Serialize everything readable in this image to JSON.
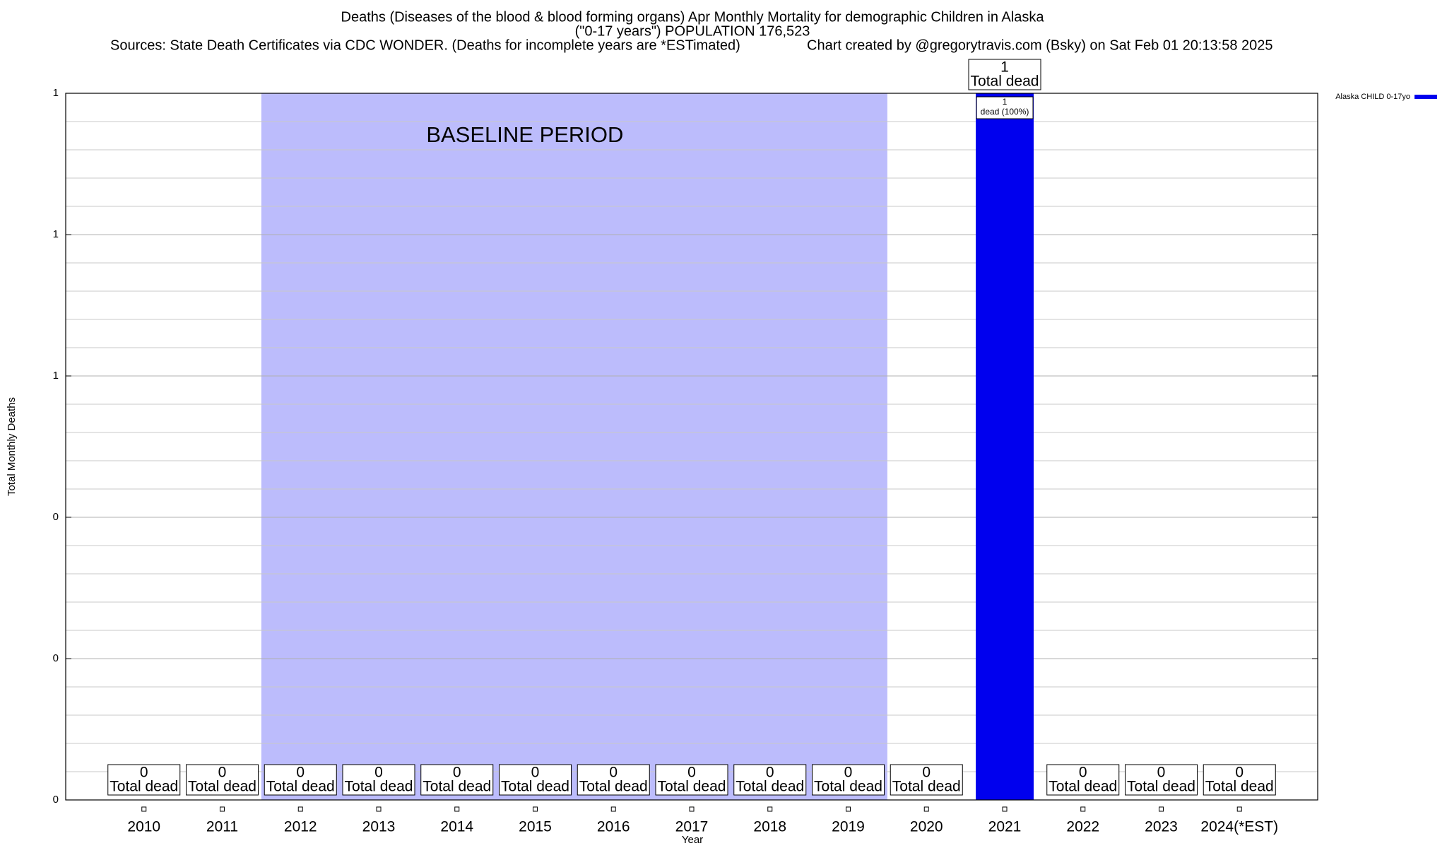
{
  "chart_data": {
    "type": "bar",
    "title": "Deaths (Diseases of the blood & blood forming organs) Apr Monthly Mortality for demographic Children in Alaska",
    "title_line2": "(\"0-17 years\") POPULATION 176,523",
    "source": "Sources: State Death Certificates via CDC WONDER. (Deaths for incomplete years are *ESTimated)",
    "credit": "Chart created by @gregorytravis.com (Bsky) on Sat Feb 01 20:13:58 2025",
    "xlabel": "Year",
    "ylabel": "Total Monthly Deaths",
    "categories": [
      "2010",
      "2011",
      "2012",
      "2013",
      "2014",
      "2015",
      "2016",
      "2017",
      "2018",
      "2019",
      "2020",
      "2021",
      "2022",
      "2023",
      "2024(*EST)"
    ],
    "series": [
      {
        "name": "Alaska CHILD 0-17yo",
        "color": "#0000ee",
        "values": [
          0,
          0,
          0,
          0,
          0,
          0,
          0,
          0,
          0,
          0,
          0,
          1,
          0,
          0,
          0
        ],
        "value_labels": [
          "0",
          "0",
          "0",
          "0",
          "0",
          "0",
          "0",
          "0",
          "0",
          "0",
          "0",
          "1",
          "0",
          "0",
          "0"
        ]
      }
    ],
    "total_label": "Total dead",
    "inner_label": "dead (100%)",
    "baseline": {
      "label": "BASELINE PERIOD",
      "start": "2012",
      "end": "2019",
      "color": "#bcbcfc"
    },
    "ylim": [
      0,
      1
    ],
    "yticks": [
      0,
      {
        "value": 0.2,
        "label": "0"
      },
      {
        "value": 0.4,
        "label": "0"
      },
      {
        "value": 0.6,
        "label": "1"
      },
      {
        "value": 0.8,
        "label": "1"
      },
      1
    ],
    "minor_yticks": [
      0.04,
      0.08,
      0.12,
      0.16,
      0.24,
      0.28,
      0.32,
      0.36,
      0.44,
      0.48,
      0.52,
      0.56,
      0.64,
      0.68,
      0.72,
      0.76,
      0.84,
      0.88,
      0.92,
      0.96
    ],
    "grid": true,
    "legend": "outside-top-right"
  }
}
